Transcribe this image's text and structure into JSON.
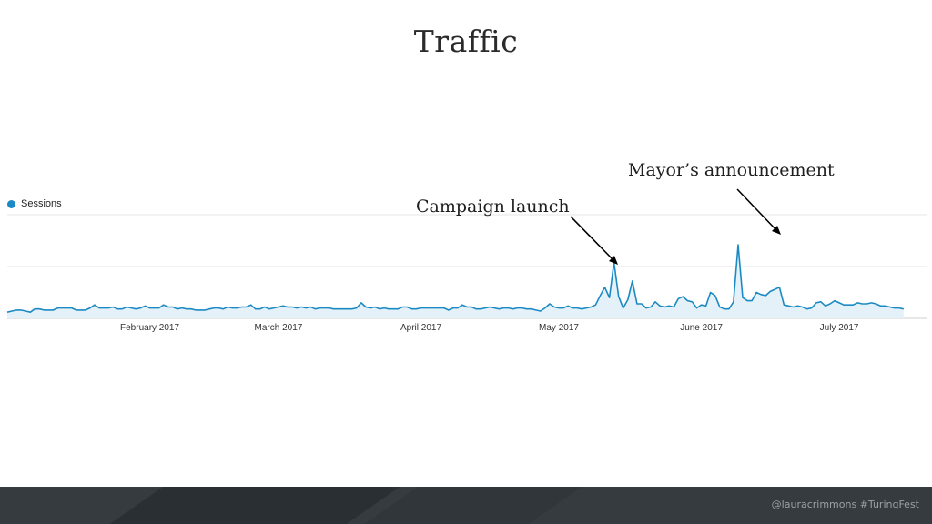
{
  "slide": {
    "title": "Traffic",
    "footer": "@lauracrimmons  #TuringFest"
  },
  "annotations": {
    "campaign": "Campaign launch",
    "mayor": "Mayor’s announcement"
  },
  "colors": {
    "line": "#1b8ac4",
    "area": "#e4f1f8",
    "grid": "#e6e6e6",
    "legend_dot": "#1b8ac4"
  },
  "chart_data": {
    "type": "area",
    "legend": [
      {
        "label": "Sessions",
        "color": "#1b8ac4"
      }
    ],
    "legend_position": "top-left",
    "x_ticks": [
      "February 2017",
      "March 2017",
      "April 2017",
      "May 2017",
      "June 2017",
      "July 2017"
    ],
    "x_range_days": [
      0,
      200
    ],
    "tick_days": [
      31,
      59,
      90,
      120,
      151,
      181
    ],
    "grid": true,
    "y_range": [
      0,
      100
    ],
    "series": [
      {
        "name": "Sessions",
        "values": [
          6,
          7,
          8,
          8,
          7,
          6,
          9,
          9,
          8,
          8,
          8,
          10,
          10,
          10,
          10,
          8,
          8,
          8,
          10,
          13,
          10,
          10,
          10,
          11,
          9,
          9,
          11,
          10,
          9,
          10,
          12,
          10,
          10,
          10,
          13,
          11,
          11,
          9,
          10,
          9,
          9,
          8,
          8,
          8,
          9,
          10,
          10,
          9,
          11,
          10,
          10,
          11,
          11,
          13,
          9,
          9,
          11,
          9,
          10,
          11,
          12,
          11,
          11,
          10,
          11,
          10,
          11,
          9,
          10,
          10,
          10,
          9,
          9,
          9,
          9,
          9,
          10,
          15,
          11,
          10,
          11,
          9,
          10,
          9,
          9,
          9,
          11,
          11,
          9,
          9,
          10,
          10,
          10,
          10,
          10,
          10,
          8,
          10,
          10,
          13,
          11,
          11,
          9,
          9,
          10,
          11,
          10,
          9,
          10,
          10,
          9,
          10,
          10,
          9,
          9,
          8,
          7,
          10,
          14,
          11,
          10,
          10,
          12,
          10,
          10,
          9,
          10,
          11,
          13,
          22,
          30,
          20,
          54,
          21,
          10,
          18,
          36,
          14,
          14,
          10,
          11,
          16,
          12,
          11,
          12,
          11,
          19,
          21,
          17,
          16,
          10,
          13,
          12,
          25,
          22,
          11,
          9,
          9,
          16,
          71,
          20,
          17,
          17,
          25,
          23,
          22,
          26,
          28,
          30,
          13,
          12,
          11,
          12,
          11,
          9,
          10,
          15,
          16,
          12,
          14,
          17,
          15,
          13,
          13,
          13,
          15,
          14,
          14,
          15,
          14,
          12,
          12,
          11,
          10,
          10,
          9
        ]
      }
    ]
  }
}
